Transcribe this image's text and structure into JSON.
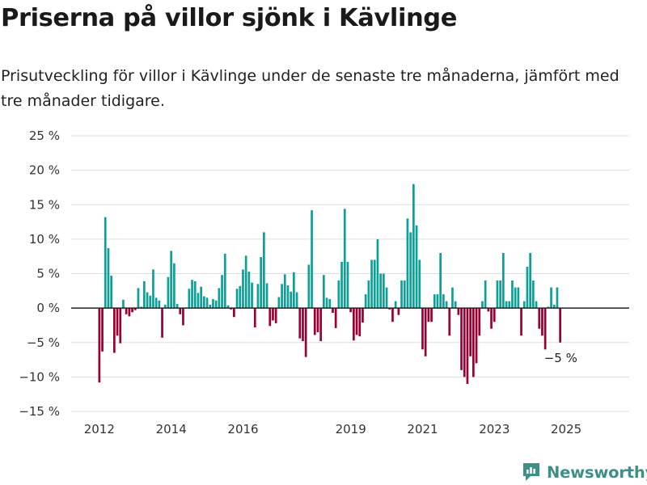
{
  "header": {
    "title": "Priserna på villor sjönk i Kävlinge",
    "subtitle": "Prisutveckling för villor i Kävlinge under de senaste tre månaderna, jämfört med tre månader tidigare."
  },
  "brand": {
    "name": "Newsworthy",
    "icon": "newsworthy-logo-icon",
    "color": "#3e8f86"
  },
  "chart_data": {
    "type": "bar",
    "title": "Priserna på villor sjönk i Kävlinge",
    "subtitle": "Prisutveckling för villor i Kävlinge under de senaste tre månaderna, jämfört med tre månader tidigare.",
    "xlabel": "",
    "ylabel": "",
    "ylim": [
      -15,
      25
    ],
    "yticks": [
      -15,
      -10,
      -5,
      0,
      5,
      10,
      15,
      20,
      25
    ],
    "ytick_labels": [
      "−15 %",
      "−10 %",
      "−5 %",
      "0 %",
      "5 %",
      "10 %",
      "15 %",
      "20 %",
      "25 %"
    ],
    "xticks": [
      "2012",
      "2014",
      "2016",
      "2019",
      "2021",
      "2023",
      "2025"
    ],
    "x_tick_months_since_start": [
      0,
      24,
      48,
      84,
      108,
      132,
      156
    ],
    "x_start": "2012-01",
    "x_end": "2025-05",
    "grid": true,
    "colors": {
      "positive": "#0e9f97",
      "negative": "#990033",
      "grid": "#dddddd",
      "zero_line": "#222222"
    },
    "annotation": {
      "text": "−5 %",
      "value": -5
    },
    "values": [
      -10.8,
      -6.3,
      13.2,
      8.7,
      4.7,
      -6.5,
      -4.0,
      -5.1,
      1.2,
      -0.9,
      -1.2,
      -0.6,
      -0.3,
      2.9,
      0.2,
      3.9,
      2.3,
      1.8,
      5.6,
      1.5,
      1.1,
      -4.3,
      0.5,
      4.5,
      8.3,
      6.5,
      0.6,
      -0.9,
      -2.5,
      0.1,
      2.8,
      4.1,
      3.9,
      2.2,
      3.1,
      1.7,
      1.5,
      0.5,
      1.3,
      1.1,
      2.9,
      4.8,
      7.9,
      0.4,
      -0.2,
      -1.3,
      2.8,
      3.2,
      5.6,
      7.6,
      5.3,
      3.7,
      -2.8,
      3.5,
      7.4,
      11.0,
      3.6,
      -2.6,
      -1.8,
      -2.2,
      1.6,
      3.5,
      4.9,
      3.3,
      2.4,
      5.2,
      2.3,
      -4.4,
      -4.8,
      -7.1,
      6.3,
      14.2,
      -3.9,
      -3.5,
      -4.8,
      4.8,
      1.5,
      1.3,
      -0.7,
      -2.9,
      4.0,
      6.7,
      14.4,
      6.7,
      -0.6,
      -4.7,
      -3.9,
      -4.1,
      -2.1,
      2.0,
      4.0,
      7.0,
      7.0,
      10.0,
      5.0,
      5.0,
      3.0,
      -0.2,
      -2.0,
      1.0,
      -1.0,
      4.0,
      4.0,
      13.0,
      11.0,
      18.0,
      12.0,
      7.0,
      -6.0,
      -7.0,
      -2.0,
      -2.0,
      2.0,
      2.0,
      8.0,
      2.0,
      1.0,
      -4.0,
      3.0,
      1.0,
      -1.0,
      -9.0,
      -10.0,
      -11.0,
      -7.0,
      -10.0,
      -8.0,
      -4.0,
      1.0,
      4.0,
      -0.5,
      -3.0,
      -2.0,
      4.0,
      4.0,
      8.0,
      1.0,
      1.0,
      4.0,
      3.0,
      3.0,
      -4.0,
      1.0,
      6.0,
      8.0,
      4.0,
      1.0,
      -3.0,
      -4.0,
      -6.0,
      0.2,
      3.0,
      0.5,
      3.0,
      -5.0
    ]
  }
}
